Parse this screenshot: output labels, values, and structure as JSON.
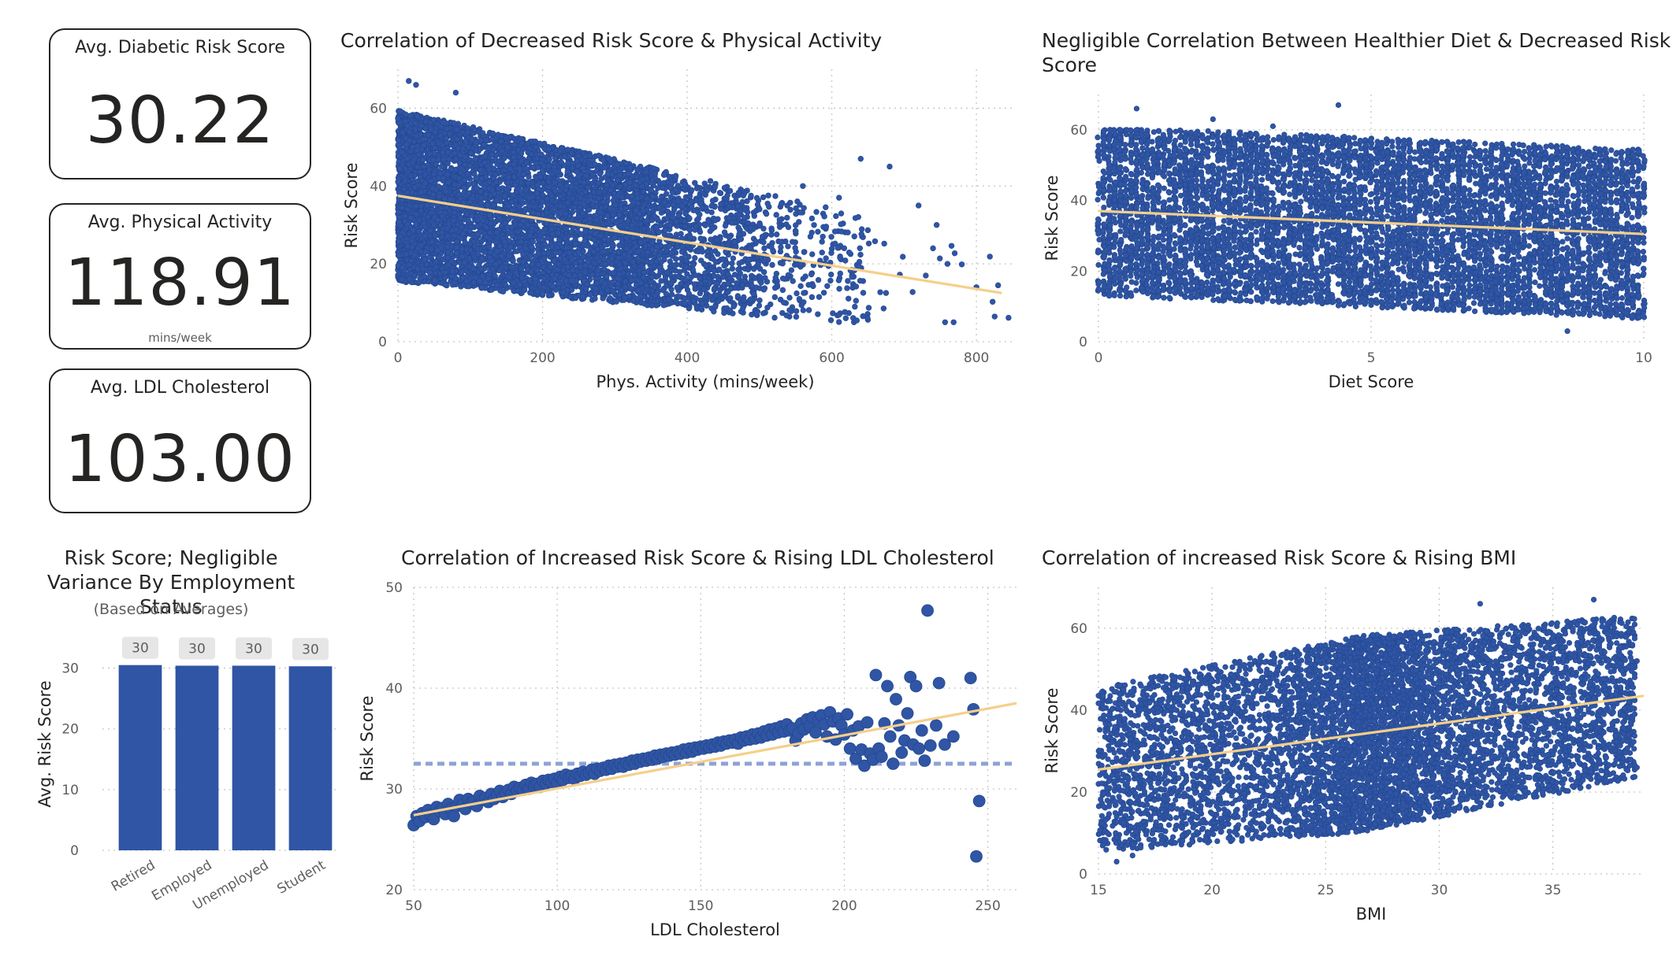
{
  "kpis": [
    {
      "label": "Avg. Diabetic Risk Score",
      "value": "30.22",
      "unit": ""
    },
    {
      "label": "Avg. Physical Activity",
      "value": "118.91",
      "unit": "mins/week"
    },
    {
      "label": "Avg. LDL Cholesterol",
      "value": "103.00",
      "unit": ""
    }
  ],
  "colors": {
    "points": "#2f55a4",
    "trend": "#f5cf8a",
    "bar": "#2f55a4",
    "grid": "#c8c6c4",
    "label_bg": "#e6e6e6",
    "avg_line": "#8ea3d6"
  },
  "chart_data": [
    {
      "id": "activity",
      "type": "scatter",
      "title": "Correlation of Decreased Risk Score & Physical Activity",
      "xlabel": "Phys. Activity (mins/week)",
      "ylabel": "Risk Score",
      "xlim": [
        0,
        850
      ],
      "ylim": [
        0,
        70
      ],
      "xticks": [
        0,
        200,
        400,
        600,
        800
      ],
      "yticks": [
        0,
        20,
        40,
        60
      ],
      "grid": true,
      "trendline": {
        "x": [
          0,
          835
        ],
        "y": [
          37.5,
          12.5
        ]
      },
      "density": {
        "x_max_clusters": [
          [
            0,
            350,
            5400
          ],
          [
            350,
            500,
            900
          ],
          [
            500,
            650,
            260
          ],
          [
            650,
            850,
            20
          ]
        ],
        "y_range": [
          5,
          63
        ]
      },
      "outliers": [
        [
          25,
          66
        ],
        [
          15,
          67
        ],
        [
          80,
          64
        ],
        [
          680,
          45
        ],
        [
          720,
          35
        ],
        [
          730,
          17
        ],
        [
          745,
          30
        ],
        [
          740,
          24
        ],
        [
          760,
          20
        ],
        [
          800,
          14
        ],
        [
          830,
          14.5
        ],
        [
          640,
          47
        ],
        [
          610,
          37
        ],
        [
          560,
          40
        ]
      ]
    },
    {
      "id": "diet",
      "type": "scatter",
      "title": "Negligible Correlation Between Healthier Diet & Decreased Risk Score",
      "xlabel": "Diet Score",
      "ylabel": "Risk Score",
      "xlim": [
        0,
        10
      ],
      "ylim": [
        0,
        70
      ],
      "xticks": [
        0,
        5,
        10
      ],
      "yticks": [
        0,
        20,
        40,
        60
      ],
      "grid": true,
      "trendline": {
        "x": [
          0,
          10
        ],
        "y": [
          37,
          30.5
        ]
      },
      "outliers": [
        [
          0.7,
          66
        ],
        [
          4.4,
          67
        ],
        [
          2.1,
          63
        ],
        [
          8.6,
          3
        ],
        [
          1.7,
          57
        ],
        [
          3.2,
          61
        ]
      ]
    },
    {
      "id": "employment",
      "type": "bar",
      "title": "Risk Score; Negligible Variance By Employment Status",
      "subtitle": "(Based on Averages)",
      "categories": [
        "Retired",
        "Employed",
        "Unemployed",
        "Student"
      ],
      "values": [
        30.5,
        30.4,
        30.4,
        30.3
      ],
      "data_labels": [
        "30",
        "30",
        "30",
        "30"
      ],
      "ylabel": "Avg. Risk Score",
      "ylim": [
        0,
        35
      ],
      "yticks": [
        0,
        10,
        20,
        30
      ]
    },
    {
      "id": "ldl",
      "type": "scatter",
      "title": "Correlation of Increased Risk Score & Rising LDL Cholesterol",
      "xlabel": "LDL Cholesterol",
      "ylabel": "Risk Score",
      "xlim": [
        50,
        260
      ],
      "ylim": [
        20,
        50
      ],
      "xticks": [
        50,
        100,
        150,
        200,
        250
      ],
      "yticks": [
        20,
        30,
        40,
        50
      ],
      "grid": true,
      "average_line": 32.5,
      "trendline": {
        "x": [
          50,
          260
        ],
        "y": [
          27.4,
          38.5
        ]
      },
      "x": [
        50,
        51,
        52,
        53,
        54,
        55,
        56,
        57,
        58,
        59,
        60,
        61,
        62,
        63,
        64,
        65,
        66,
        67,
        68,
        69,
        70,
        71,
        72,
        73,
        74,
        75,
        76,
        77,
        78,
        79,
        80,
        81,
        82,
        83,
        84,
        85,
        86,
        87,
        88,
        89,
        90,
        91,
        92,
        93,
        94,
        95,
        96,
        97,
        98,
        99,
        100,
        101,
        102,
        103,
        104,
        105,
        106,
        107,
        108,
        109,
        110,
        111,
        112,
        113,
        114,
        115,
        116,
        117,
        118,
        119,
        120,
        121,
        122,
        123,
        124,
        125,
        126,
        127,
        128,
        129,
        130,
        131,
        132,
        133,
        134,
        135,
        136,
        137,
        138,
        139,
        140,
        141,
        142,
        143,
        144,
        145,
        146,
        147,
        148,
        149,
        150,
        151,
        152,
        153,
        154,
        155,
        156,
        157,
        158,
        159,
        160,
        161,
        162,
        163,
        164,
        165,
        166,
        167,
        168,
        169,
        170,
        171,
        172,
        173,
        174,
        175,
        176,
        177,
        178,
        179,
        180,
        181,
        182,
        183,
        184,
        185,
        186,
        187,
        188,
        189,
        190,
        191,
        192,
        193,
        194,
        195,
        196,
        197,
        198,
        199,
        200,
        201,
        202,
        203,
        204,
        205,
        206,
        207,
        208,
        209,
        210,
        211,
        212,
        213,
        214,
        215,
        216,
        217,
        218,
        219,
        220,
        221,
        222,
        223,
        224,
        225,
        226,
        227,
        228,
        229,
        230,
        232,
        233,
        235,
        238,
        244,
        245,
        246,
        247
      ],
      "y": [
        26.4,
        27.3,
        26.8,
        27.6,
        27.2,
        27.9,
        27.4,
        27.0,
        28.2,
        27.8,
        28.1,
        27.5,
        28.5,
        28.0,
        27.3,
        28.3,
        28.9,
        28.4,
        28.0,
        29.0,
        28.6,
        28.8,
        28.3,
        29.3,
        28.9,
        29.1,
        28.7,
        29.5,
        29.0,
        29.3,
        29.8,
        29.2,
        29.6,
        29.9,
        29.5,
        30.2,
        29.8,
        30.1,
        29.9,
        30.4,
        30.0,
        30.6,
        30.3,
        30.5,
        30.2,
        30.8,
        30.5,
        30.9,
        30.7,
        31.0,
        30.6,
        31.2,
        30.9,
        31.4,
        31.1,
        31.3,
        31.0,
        31.5,
        31.3,
        31.7,
        31.4,
        31.6,
        31.9,
        31.5,
        32.0,
        31.8,
        32.1,
        31.9,
        32.3,
        32.0,
        32.4,
        32.2,
        32.5,
        32.2,
        32.6,
        32.4,
        32.8,
        32.5,
        32.9,
        32.7,
        33.0,
        32.8,
        33.1,
        32.9,
        33.3,
        33.0,
        33.4,
        33.2,
        33.5,
        33.3,
        33.6,
        33.4,
        33.7,
        33.5,
        33.9,
        33.6,
        34.0,
        33.7,
        34.1,
        33.9,
        34.2,
        34.0,
        34.3,
        34.1,
        34.4,
        34.2,
        34.6,
        34.3,
        34.7,
        34.5,
        34.8,
        34.6,
        34.9,
        34.5,
        35.1,
        34.8,
        35.2,
        34.9,
        35.4,
        35.0,
        35.5,
        35.1,
        35.7,
        35.3,
        35.9,
        35.4,
        36.0,
        35.6,
        36.2,
        35.7,
        36.4,
        35.8,
        36.0,
        34.8,
        35.5,
        36.5,
        35.9,
        36.9,
        36.2,
        37.1,
        35.6,
        36.8,
        37.3,
        36.4,
        35.2,
        37.6,
        36.7,
        34.9,
        37.0,
        36.3,
        35.4,
        37.4,
        34.0,
        35.8,
        33.0,
        36.2,
        33.9,
        32.3,
        36.6,
        33.5,
        32.9,
        41.3,
        34.0,
        33.2,
        36.5,
        40.2,
        35.2,
        32.5,
        38.9,
        36.3,
        33.6,
        34.8,
        37.5,
        41.1,
        34.4,
        40.2,
        34.0,
        35.8,
        32.8,
        47.7,
        34.3,
        36.3,
        40.5,
        34.4,
        35.2,
        41.0,
        37.9,
        23.3,
        28.8
      ]
    },
    {
      "id": "bmi",
      "type": "scatter",
      "title": "Correlation of increased Risk Score & Rising BMI",
      "xlabel": "BMI",
      "ylabel": "Risk Score",
      "xlim": [
        15,
        39
      ],
      "ylim": [
        0,
        70
      ],
      "xticks": [
        15,
        20,
        25,
        30,
        35
      ],
      "yticks": [
        0,
        20,
        40,
        60
      ],
      "grid": true,
      "trendline": {
        "x": [
          15,
          39
        ],
        "y": [
          25.5,
          43.5
        ]
      },
      "outliers": [
        [
          36.8,
          67
        ],
        [
          31.8,
          66
        ],
        [
          15.8,
          3
        ],
        [
          16.5,
          4.5
        ],
        [
          38.7,
          52
        ],
        [
          38.5,
          56
        ],
        [
          37.8,
          58
        ],
        [
          38.7,
          26
        ]
      ]
    }
  ]
}
